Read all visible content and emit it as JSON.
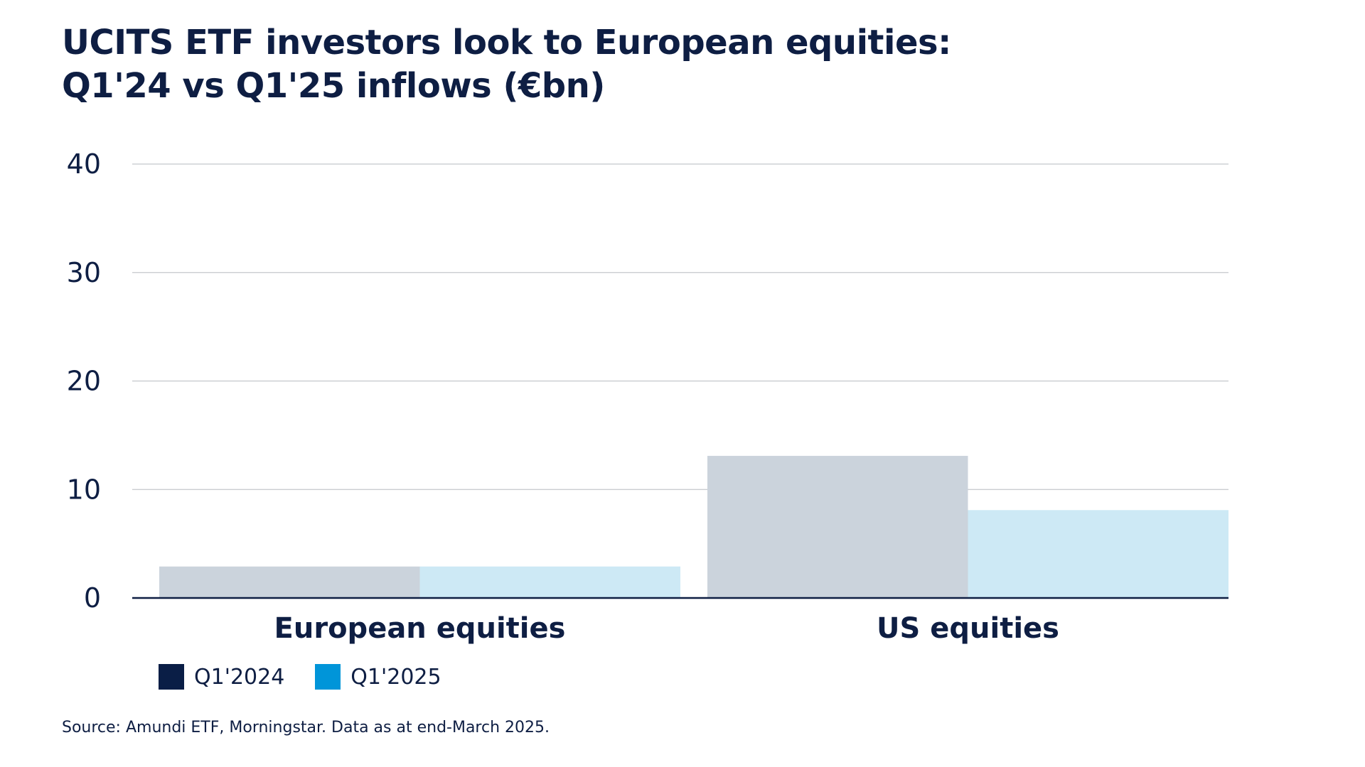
{
  "title_lines": [
    "UCITS ETF investors look to European equities:",
    "Q1'24 vs Q1'25 inflows (€bn)"
  ],
  "source": "Source: Amundi ETF, Morningstar. Data as at end-March 2025.",
  "colors": {
    "text": "#0e1e43",
    "grid": "#c4c7cc",
    "axis": "#0e1e43",
    "bar_q1_2024": "#cbd3dc",
    "bar_q1_2025": "#cde9f5",
    "legend_q1_2024": "#0a1e46",
    "legend_q1_2025": "#0095d9"
  },
  "chart_data": {
    "type": "bar",
    "title": "UCITS ETF investors look to European equities: Q1'24 vs Q1'25 inflows (€bn)",
    "categories": [
      "European equities",
      "US equities"
    ],
    "series": [
      {
        "name": "Q1'2024",
        "values": [
          2.9,
          13.1
        ]
      },
      {
        "name": "Q1'2025",
        "values": [
          2.9,
          8.1
        ]
      }
    ],
    "ylim": [
      0,
      40
    ],
    "yticks": [
      0,
      10,
      20,
      30,
      40
    ],
    "xlabel": "",
    "ylabel": "",
    "grid": true,
    "legend_position": "bottom-left"
  }
}
